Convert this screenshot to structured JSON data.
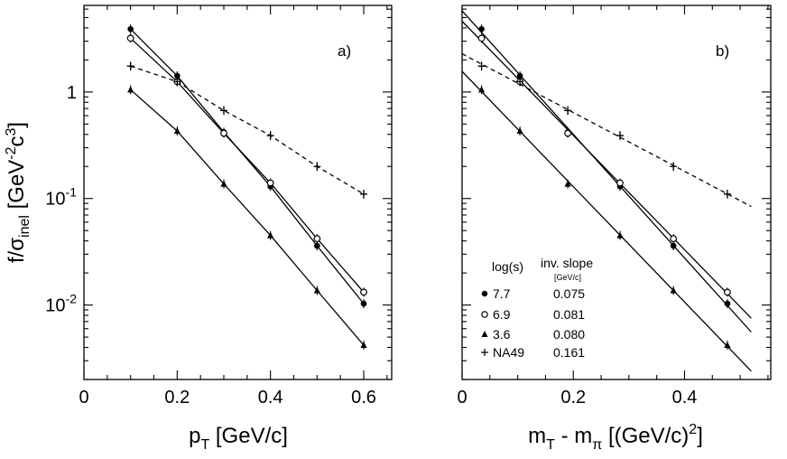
{
  "chart_data": [
    {
      "type": "scatter",
      "panel": "a)",
      "xlabel_main": "p",
      "xlabel_sub": "T",
      "xlabel_unit": " [GeV/c]",
      "ylabel_main": "f/σ",
      "ylabel_sub": "inel",
      "ylabel_unit_pre": " [GeV",
      "ylabel_sup1": "-2",
      "ylabel_mid": "c",
      "ylabel_sup2": "3",
      "ylabel_unit_post": "]",
      "yscale": "log",
      "xlim": [
        0,
        0.66
      ],
      "ylim": [
        0.002,
        6.5
      ],
      "xticks": [
        0,
        0.2,
        0.4,
        0.6
      ],
      "xtick_labels": [
        "0",
        "0.2",
        "0.4",
        "0.6"
      ],
      "yticks": [
        1,
        0.1,
        0.01
      ],
      "ytick_labels": [
        {
          "base": "1",
          "exp": ""
        },
        {
          "base": "10",
          "exp": "-1"
        },
        {
          "base": "10",
          "exp": "-2"
        }
      ],
      "series": [
        {
          "name": "7.7",
          "marker": "filled-circle",
          "line": "solid",
          "x": [
            0.1,
            0.2,
            0.3,
            0.4,
            0.5,
            0.6
          ],
          "y": [
            3.9,
            1.42,
            0.42,
            0.13,
            0.036,
            0.0103
          ]
        },
        {
          "name": "6.9",
          "marker": "open-circle",
          "line": "solid",
          "x": [
            0.1,
            0.2,
            0.3,
            0.4,
            0.5,
            0.6
          ],
          "y": [
            3.2,
            1.25,
            0.41,
            0.14,
            0.042,
            0.0132
          ]
        },
        {
          "name": "3.6",
          "marker": "filled-triangle",
          "line": "solid",
          "x": [
            0.1,
            0.2,
            0.3,
            0.4,
            0.5,
            0.6
          ],
          "y": [
            1.05,
            0.43,
            0.137,
            0.045,
            0.0137,
            0.0042
          ]
        },
        {
          "name": "NA49",
          "marker": "plus",
          "line": "dashed",
          "x": [
            0.1,
            0.2,
            0.3,
            0.4,
            0.5,
            0.6
          ],
          "y": [
            1.75,
            1.25,
            0.67,
            0.39,
            0.2,
            0.11
          ]
        }
      ]
    },
    {
      "type": "scatter",
      "panel": "b)",
      "xlabel_main": "m",
      "xlabel_sub1": "T",
      "xlabel_mid": " - m",
      "xlabel_sub2": "π",
      "xlabel_unit": " [(GeV/c)",
      "xlabel_sup": "2",
      "xlabel_end": "]",
      "yscale": "log",
      "xlim": [
        0,
        0.555
      ],
      "ylim": [
        0.002,
        6.5
      ],
      "xticks": [
        0,
        0.2,
        0.4
      ],
      "xtick_labels": [
        "0",
        "0.2",
        "0.4"
      ],
      "series": [
        {
          "name": "7.7",
          "marker": "filled-circle",
          "line": "solid",
          "inv_slope": "0.075",
          "x": [
            0.035,
            0.104,
            0.19,
            0.284,
            0.38,
            0.477
          ],
          "y": [
            3.9,
            1.42,
            0.42,
            0.13,
            0.036,
            0.0103
          ]
        },
        {
          "name": "6.9",
          "marker": "open-circle",
          "line": "solid",
          "inv_slope": "0.081",
          "x": [
            0.035,
            0.104,
            0.19,
            0.284,
            0.38,
            0.477
          ],
          "y": [
            3.2,
            1.25,
            0.41,
            0.14,
            0.042,
            0.0132
          ]
        },
        {
          "name": "3.6",
          "marker": "filled-triangle",
          "line": "solid",
          "inv_slope": "0.080",
          "x": [
            0.035,
            0.104,
            0.19,
            0.284,
            0.38,
            0.477
          ],
          "y": [
            1.05,
            0.43,
            0.137,
            0.045,
            0.0137,
            0.0042
          ]
        },
        {
          "name": "NA49",
          "marker": "plus",
          "line": "dashed",
          "inv_slope": "0.161",
          "x": [
            0.035,
            0.104,
            0.19,
            0.284,
            0.38,
            0.477
          ],
          "y": [
            1.75,
            1.25,
            0.67,
            0.39,
            0.2,
            0.11
          ]
        }
      ],
      "legend": {
        "col1_header": "log(s)",
        "col2_header": "inv. slope",
        "col2_unit": "[GeV/c]",
        "placement": "bottom-left"
      }
    }
  ]
}
